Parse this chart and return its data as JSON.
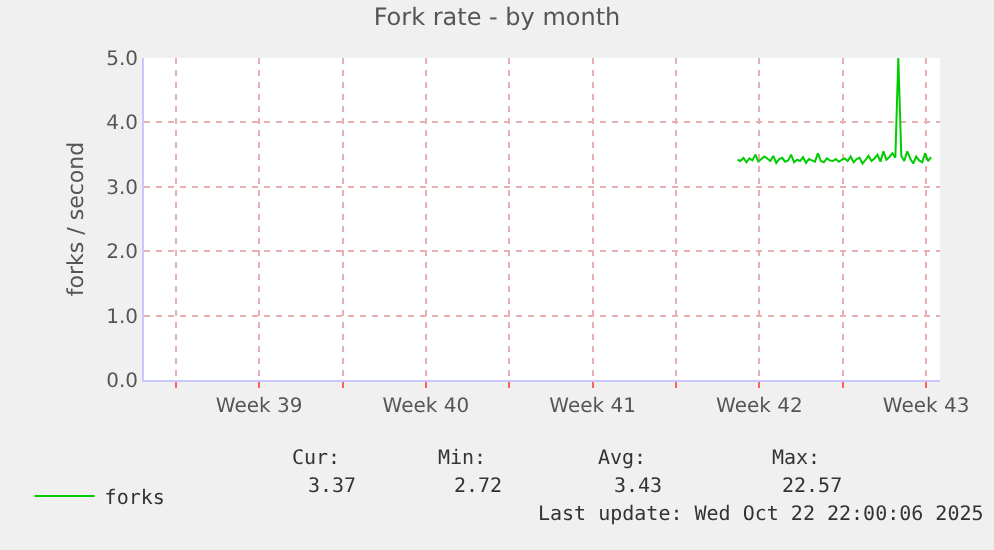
{
  "chart_data": {
    "type": "line",
    "title": "Fork rate - by month",
    "ylabel": "forks / second",
    "xlim": [
      "2025-09-20T16:00",
      "2025-10-24T02:00"
    ],
    "ylim": [
      0,
      5
    ],
    "xticks": [
      {
        "value": "2025-09-22",
        "label": null
      },
      {
        "value": "2025-09-25T12:00",
        "label": "Week 39"
      },
      {
        "value": "2025-09-29",
        "label": null
      },
      {
        "value": "2025-10-02T12:00",
        "label": "Week 40"
      },
      {
        "value": "2025-10-06",
        "label": null
      },
      {
        "value": "2025-10-09T12:00",
        "label": "Week 41"
      },
      {
        "value": "2025-10-13",
        "label": null
      },
      {
        "value": "2025-10-16T12:00",
        "label": "Week 42"
      },
      {
        "value": "2025-10-20",
        "label": null
      },
      {
        "value": "2025-10-23T12:00",
        "label": "Week 43"
      }
    ],
    "yticks": [
      {
        "value": 0,
        "label": "0.0"
      },
      {
        "value": 1,
        "label": "1.0"
      },
      {
        "value": 2,
        "label": "2.0"
      },
      {
        "value": 3,
        "label": "3.0"
      },
      {
        "value": 4,
        "label": "4.0"
      },
      {
        "value": 5,
        "label": "5.0"
      }
    ],
    "grid": true,
    "legend": "bottom left",
    "marker": "none",
    "line_style": "solid",
    "series": [
      {
        "name": "forks",
        "color": "#00cc00",
        "x": [
          "2025-10-15T14:00",
          "2025-10-15T17:00",
          "2025-10-15T20:00",
          "2025-10-15T23:00",
          "2025-10-16T02:00",
          "2025-10-16T05:00",
          "2025-10-16T08:00",
          "2025-10-16T11:00",
          "2025-10-16T14:00",
          "2025-10-16T17:00",
          "2025-10-16T20:00",
          "2025-10-16T23:00",
          "2025-10-17T02:00",
          "2025-10-17T05:00",
          "2025-10-17T08:00",
          "2025-10-17T11:00",
          "2025-10-17T14:00",
          "2025-10-17T17:00",
          "2025-10-17T20:00",
          "2025-10-17T23:00",
          "2025-10-18T02:00",
          "2025-10-18T05:00",
          "2025-10-18T08:00",
          "2025-10-18T11:00",
          "2025-10-18T14:00",
          "2025-10-18T17:00",
          "2025-10-18T20:00",
          "2025-10-18T23:00",
          "2025-10-19T02:00",
          "2025-10-19T05:00",
          "2025-10-19T08:00",
          "2025-10-19T11:00",
          "2025-10-19T14:00",
          "2025-10-19T17:00",
          "2025-10-19T20:00",
          "2025-10-19T23:00",
          "2025-10-20T02:00",
          "2025-10-20T05:00",
          "2025-10-20T08:00",
          "2025-10-20T11:00",
          "2025-10-20T14:00",
          "2025-10-20T17:00",
          "2025-10-20T20:00",
          "2025-10-20T23:00",
          "2025-10-21T02:00",
          "2025-10-21T05:00",
          "2025-10-21T08:00",
          "2025-10-21T11:00",
          "2025-10-21T14:00",
          "2025-10-21T17:00",
          "2025-10-21T20:00",
          "2025-10-21T23:00",
          "2025-10-22T02:00",
          "2025-10-22T05:00",
          "2025-10-22T08:00",
          "2025-10-22T11:00",
          "2025-10-22T14:00",
          "2025-10-22T17:00",
          "2025-10-22T20:00",
          "2025-10-22T23:00",
          "2025-10-23T02:00",
          "2025-10-23T05:00",
          "2025-10-23T08:00",
          "2025-10-23T11:00",
          "2025-10-23T14:00",
          "2025-10-23T17:00"
        ],
        "values": [
          3.42,
          3.4,
          3.45,
          3.38,
          3.44,
          3.41,
          3.5,
          3.39,
          3.43,
          3.47,
          3.44,
          3.4,
          3.48,
          3.37,
          3.43,
          3.45,
          3.39,
          3.41,
          3.5,
          3.38,
          3.42,
          3.4,
          3.46,
          3.37,
          3.43,
          3.41,
          3.39,
          3.52,
          3.4,
          3.38,
          3.44,
          3.41,
          3.4,
          3.43,
          3.39,
          3.42,
          3.44,
          3.4,
          3.47,
          3.38,
          3.43,
          3.45,
          3.36,
          3.42,
          3.48,
          3.4,
          3.44,
          3.5,
          3.39,
          3.55,
          3.42,
          3.46,
          3.52,
          3.45,
          5.0,
          3.48,
          3.4,
          3.55,
          3.44,
          3.36,
          3.47,
          3.41,
          3.38,
          3.52,
          3.4,
          3.46
        ]
      }
    ],
    "annotations": [
      "Cur:",
      "Min:",
      "Avg:",
      "Max:",
      "3.37",
      "2.72",
      "3.43",
      "22.57",
      "Last update: Wed Oct 22 22:00:06 2025"
    ]
  }
}
